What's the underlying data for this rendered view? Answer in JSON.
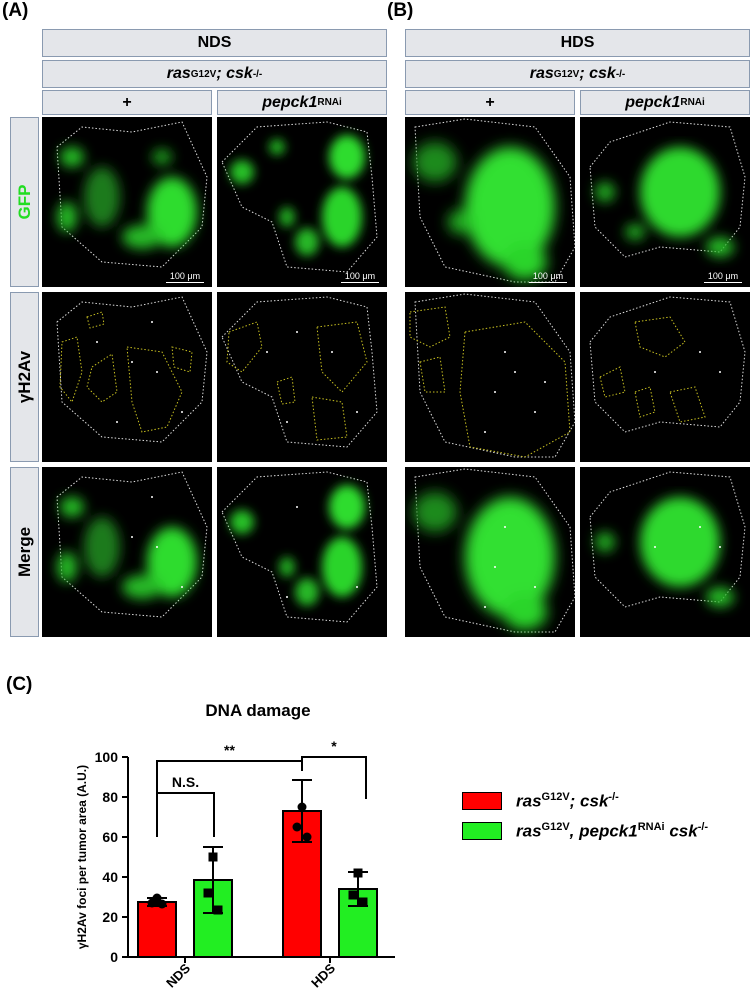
{
  "panels": {
    "a": "(A)",
    "b": "(B)",
    "c": "(C)"
  },
  "headers": {
    "nds": "NDS",
    "hds": "HDS",
    "genotype_base": "ras",
    "genotype_sup1": "G12V",
    "genotype_mid": "; csk",
    "genotype_sup2": "-/-",
    "plus": "+",
    "rnai_base": "pepck1",
    "rnai_sup": "RNAi"
  },
  "row_labels": {
    "gfp": "GFP",
    "h2av": "γH2Av",
    "merge": "Merge"
  },
  "scale_bar": "100 μm",
  "colors": {
    "gfp": "#22dd22",
    "red_bar": "#ff0000",
    "green_bar": "#22ee22"
  },
  "chart_data": {
    "type": "bar",
    "title": "DNA damage",
    "xlabel": "",
    "ylabel": "γH2Av foci per tumor area (A.U.)",
    "categories": [
      "NDS",
      "HDS"
    ],
    "ylim": [
      0,
      100
    ],
    "yticks": [
      "0",
      "20",
      "40",
      "60",
      "80",
      "100"
    ],
    "series": [
      {
        "name": "ras G12V; csk -/-",
        "color": "#ff0000",
        "values": [
          27.5,
          73
        ],
        "sd": [
          2,
          15.5
        ],
        "points": [
          [
            29.5,
            27,
            26.5
          ],
          [
            75,
            65,
            60
          ]
        ]
      },
      {
        "name": "ras G12V, pepck1 RNAi csk -/-",
        "color": "#22ee22",
        "values": [
          38.5,
          34
        ],
        "sd": [
          16.5,
          8.5
        ],
        "points": [
          [
            50,
            32,
            23.5
          ],
          [
            42,
            31,
            27.5
          ]
        ]
      }
    ],
    "significance": [
      {
        "label": "N.S."
      },
      {
        "label": "**"
      },
      {
        "label": "*"
      }
    ],
    "legend": {
      "placement": "right",
      "entries": [
        {
          "base": "ras",
          "sup1": "G12V",
          "mid": "; csk",
          "sup2": "-/-"
        },
        {
          "base": "ras",
          "sup1": "G12V",
          "mid": ", pepck1",
          "sup2": "RNAi",
          "tail": " csk",
          "sup3": "-/-"
        }
      ]
    }
  }
}
